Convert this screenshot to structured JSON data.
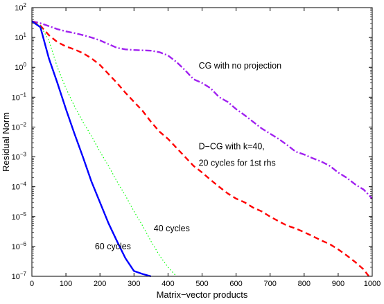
{
  "chart_data": {
    "type": "line",
    "xlabel": "Matrix−vector products",
    "ylabel": "Residual Norm",
    "xlim": [
      0,
      1000
    ],
    "ylim": [
      1e-07,
      100
    ],
    "yscale": "log",
    "grid": false,
    "x_ticks": [
      0,
      100,
      200,
      300,
      400,
      500,
      600,
      700,
      800,
      900,
      1000
    ],
    "x_tick_labels": [
      "0",
      "100",
      "200",
      "300",
      "400",
      "500",
      "600",
      "700",
      "800",
      "900",
      "1000"
    ],
    "y_ticks": [
      1e-07,
      1e-06,
      1e-05,
      0.0001,
      0.001,
      0.01,
      0.1,
      1,
      10,
      100
    ],
    "y_tick_mantissa": [
      "10",
      "10",
      "10",
      "10",
      "10",
      "10",
      "10",
      "10",
      "10",
      "10"
    ],
    "y_tick_exponents": [
      "−7",
      "−6",
      "−5",
      "−4",
      "−3",
      "−2",
      "−1",
      "0",
      "1",
      "2"
    ],
    "series": [
      {
        "name": "CG with no projection",
        "color": "#a020f0",
        "style": "dashdot",
        "x": [
          0,
          25,
          50,
          75,
          100,
          125,
          150,
          175,
          200,
          225,
          250,
          275,
          300,
          325,
          350,
          375,
          400,
          425,
          450,
          475,
          500,
          525,
          550,
          575,
          600,
          625,
          650,
          675,
          700,
          725,
          750,
          775,
          800,
          825,
          850,
          875,
          900,
          925,
          950,
          975,
          1000
        ],
        "y": [
          35,
          30,
          24,
          19,
          16,
          14,
          12,
          10,
          8,
          6,
          4.5,
          4,
          3.8,
          3.7,
          3.6,
          3.2,
          2.5,
          1.5,
          0.8,
          0.4,
          0.3,
          0.2,
          0.1,
          0.07,
          0.04,
          0.025,
          0.015,
          0.009,
          0.006,
          0.004,
          0.0025,
          0.0015,
          0.0012,
          0.0009,
          0.0007,
          0.0005,
          0.0003,
          0.0002,
          0.00012,
          8e-05,
          4e-05
        ]
      },
      {
        "name": "D−CG with k=40, 20 cycles for 1st rhs",
        "color": "#ff0000",
        "style": "dashed",
        "x": [
          0,
          25,
          50,
          75,
          100,
          125,
          150,
          175,
          200,
          225,
          250,
          275,
          300,
          325,
          350,
          375,
          400,
          425,
          450,
          475,
          500,
          525,
          550,
          575,
          600,
          625,
          650,
          675,
          700,
          725,
          750,
          775,
          800,
          825,
          850,
          875,
          900,
          925,
          950,
          975,
          990
        ],
        "y": [
          35,
          25,
          12,
          7,
          5,
          4,
          3,
          2,
          1.2,
          0.6,
          0.3,
          0.14,
          0.07,
          0.035,
          0.015,
          0.007,
          0.004,
          0.002,
          0.001,
          0.0005,
          0.0003,
          0.00017,
          0.0001,
          6e-05,
          4e-05,
          3e-05,
          2e-05,
          1.5e-05,
          1e-05,
          7e-06,
          5e-06,
          4e-06,
          3e-06,
          2.2e-06,
          1.6e-06,
          1.2e-06,
          8e-07,
          5e-07,
          3e-07,
          1.7e-07,
          1e-07
        ]
      },
      {
        "name": "40 cycles",
        "color": "#00ff00",
        "style": "dotted",
        "x": [
          0,
          25,
          50,
          75,
          100,
          125,
          150,
          175,
          200,
          225,
          250,
          275,
          300,
          325,
          350,
          375,
          400,
          425
        ],
        "y": [
          35,
          25,
          8,
          1,
          0.2,
          0.05,
          0.015,
          0.005,
          0.0015,
          0.0005,
          0.00015,
          5e-05,
          1.5e-05,
          5e-06,
          1.5e-06,
          5e-07,
          2e-07,
          1e-07
        ]
      },
      {
        "name": "60 cycles",
        "color": "#0000ff",
        "style": "solid",
        "x": [
          0,
          25,
          50,
          75,
          100,
          125,
          150,
          175,
          200,
          225,
          250,
          275,
          300,
          325,
          350
        ],
        "y": [
          35,
          22,
          2,
          0.3,
          0.04,
          0.006,
          0.001,
          0.00015,
          3e-05,
          6e-06,
          1.5e-06,
          4e-07,
          1.5e-07,
          1.2e-07,
          1e-07
        ]
      }
    ],
    "annotations": [
      {
        "text": "CG with no projection",
        "x": 490,
        "y": 0.9
      },
      {
        "text": "D−CG with k=40,",
        "x": 490,
        "y": 0.0018
      },
      {
        "text": "20 cycles for 1st rhs",
        "x": 490,
        "y": 0.0005
      },
      {
        "text": "40 cycles",
        "x": 358,
        "y": 3.2e-06
      },
      {
        "text": "60 cycles",
        "x": 185,
        "y": 8e-07
      }
    ]
  }
}
